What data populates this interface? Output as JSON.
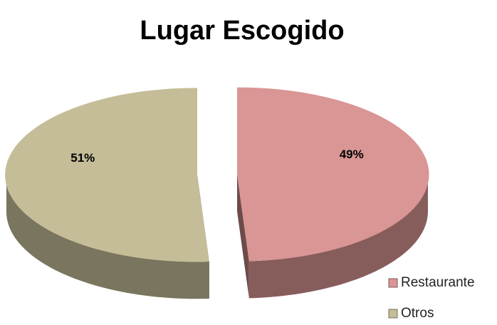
{
  "chart_data": {
    "type": "pie",
    "title": "Lugar Escogido",
    "categories": [
      "Restaurante",
      "Otros"
    ],
    "values": [
      49,
      51
    ],
    "value_labels": [
      "49%",
      "51%"
    ],
    "colors": [
      "#d99694",
      "#c4bd97"
    ],
    "exploded": true,
    "legend": "bottom-right"
  }
}
